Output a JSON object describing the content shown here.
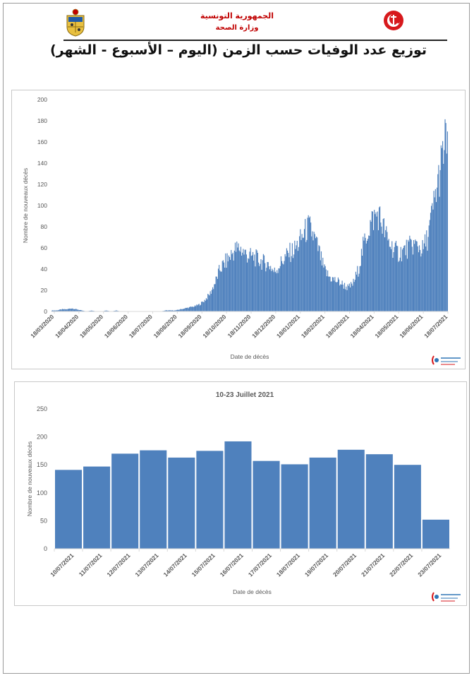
{
  "header": {
    "government": "الجمهورية التونسية",
    "ministry": "وزارة الصحة",
    "title": "توزيع عدد الوفيات حسب الزمن (اليوم – الأسبوع - الشهر)"
  },
  "colors": {
    "bar": "#4f81bd",
    "header_text": "#c00000",
    "axis": "#d9d9d9",
    "text": "#595959"
  },
  "icons": {
    "left_logo": "tunisia-coat-of-arms-logo",
    "right_logo": "red-crescent-anchor-logo"
  },
  "chart_data": [
    {
      "type": "bar",
      "title": "",
      "xlabel": "Date de décès",
      "ylabel": "Nombre de nouveaux décès",
      "ylim": [
        0,
        200
      ],
      "yticks": [
        0,
        20,
        40,
        60,
        80,
        100,
        120,
        140,
        160,
        180,
        200
      ],
      "grid": false,
      "x_tick_labels": [
        "18/03/2020",
        "18/04/2020",
        "18/05/2020",
        "18/06/2020",
        "18/07/2020",
        "18/08/2020",
        "18/09/2020",
        "18/10/2020",
        "18/11/2020",
        "18/12/2020",
        "18/01/2021",
        "18/02/2021",
        "18/03/2021",
        "18/04/2021",
        "18/05/2021",
        "18/06/2021",
        "18/07/2021"
      ],
      "date_start": "2020-03-18",
      "date_end": "2021-07-23",
      "series": [
        {
          "values_weekly": [
            1,
            1,
            2,
            2,
            3,
            2,
            1,
            0,
            1,
            0,
            0,
            1,
            0,
            1,
            0,
            0,
            0,
            0,
            0,
            0,
            0,
            0,
            0,
            1,
            1,
            1,
            2,
            3,
            4,
            5,
            7,
            11,
            17,
            27,
            40,
            46,
            52,
            58,
            60,
            55,
            52,
            51,
            48,
            46,
            44,
            37,
            44,
            50,
            55,
            58,
            65,
            74,
            80,
            70,
            57,
            40,
            33,
            30,
            28,
            25,
            22,
            27,
            40,
            62,
            78,
            88,
            92,
            80,
            66,
            60,
            55,
            57,
            60,
            63,
            62,
            58,
            70,
            95,
            120,
            145,
            170
          ]
        }
      ]
    },
    {
      "type": "bar",
      "title": "10-23 Juillet 2021",
      "xlabel": "Date de décès",
      "ylabel": "Nombre de nouveaux décès",
      "ylim": [
        0,
        250
      ],
      "yticks": [
        0,
        50,
        100,
        150,
        200,
        250
      ],
      "grid": false,
      "categories": [
        "10/07/2021",
        "11/07/2021",
        "12/07/2021",
        "13/07/2021",
        "14/07/2021",
        "15/07/2021",
        "16/07/2021",
        "17/07/2021",
        "18/07/2021",
        "19/07/2021",
        "20/07/2021",
        "21/07/2021",
        "22/07/2021",
        "23/07/2021"
      ],
      "series": [
        {
          "values": [
            141,
            147,
            170,
            176,
            163,
            175,
            192,
            157,
            151,
            163,
            177,
            169,
            150,
            52
          ]
        }
      ]
    }
  ]
}
